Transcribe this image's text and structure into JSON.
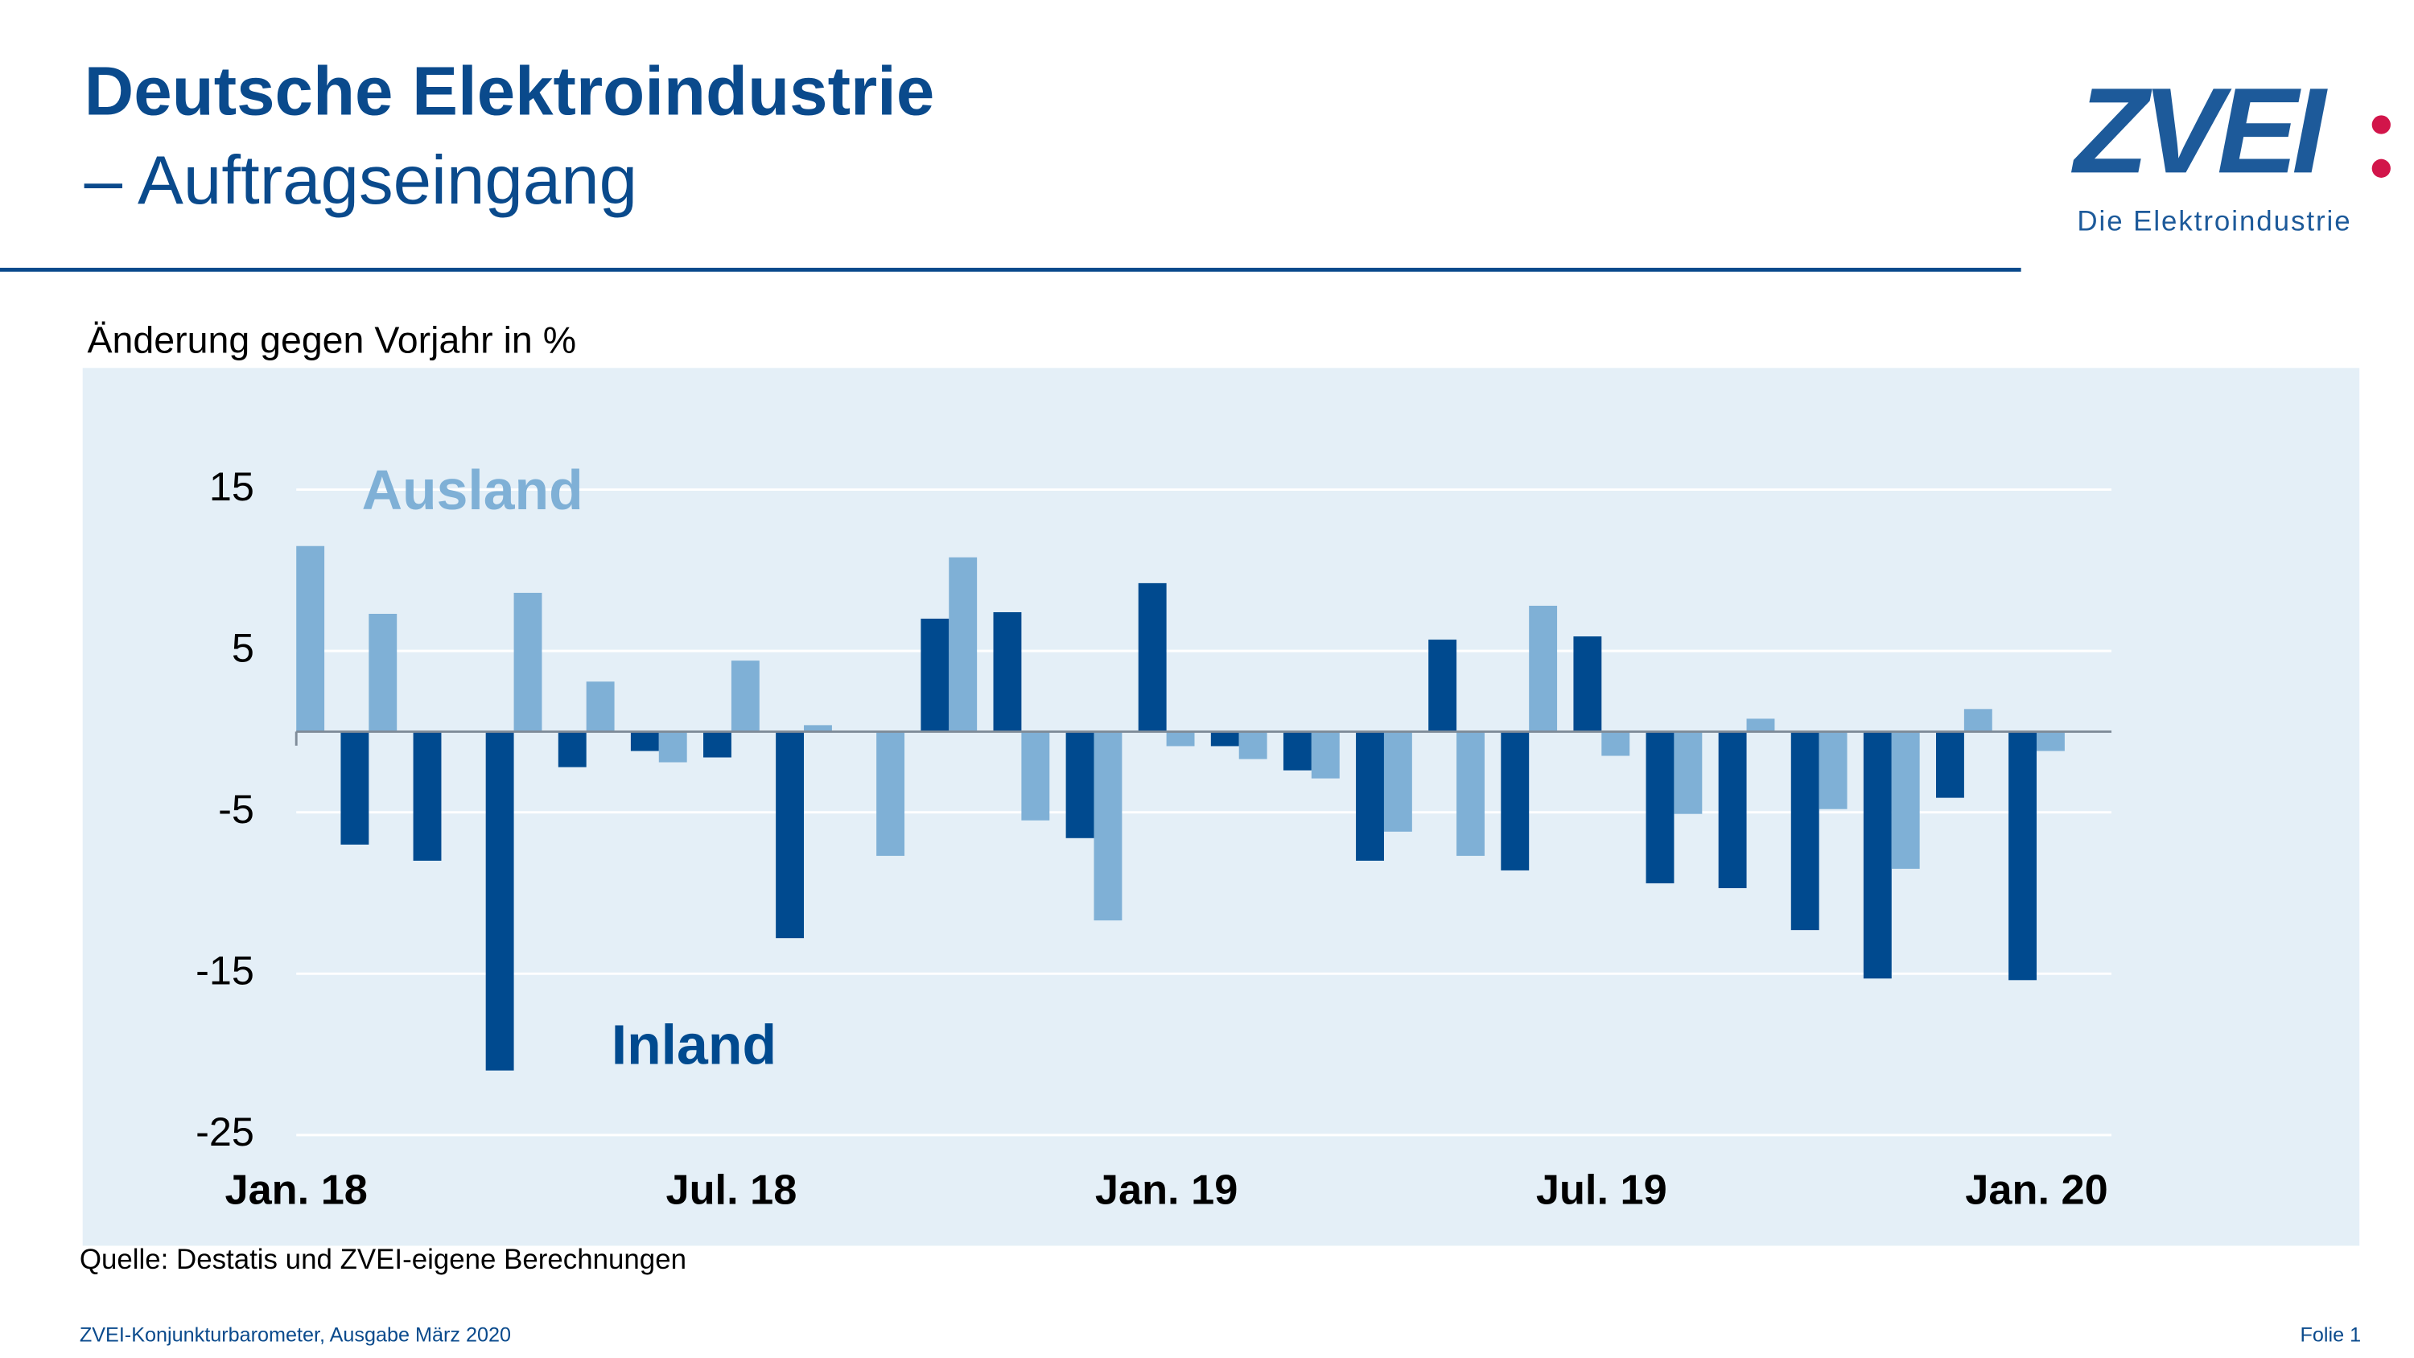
{
  "header": {
    "title": "Deutsche Elektroindustrie",
    "subtitle": "– Auftragseingang"
  },
  "logo": {
    "name": "ZVEI",
    "tagline": "Die Elektroindustrie"
  },
  "chart_data": {
    "type": "bar",
    "y_label": "Änderung gegen Vorjahr in %",
    "categories": [
      "Jan. 18",
      null,
      null,
      null,
      null,
      null,
      "Jul. 18",
      null,
      null,
      null,
      null,
      null,
      "Jan. 19",
      null,
      null,
      null,
      null,
      null,
      "Jul. 19",
      null,
      null,
      null,
      null,
      null,
      "Jan. 20"
    ],
    "series": [
      {
        "name": "Inland",
        "color": "#004a8f",
        "values": [
          null,
          -7,
          -8,
          -21,
          -2.2,
          -1.2,
          -1.6,
          -12.8,
          null,
          7,
          7.4,
          -6.6,
          9.2,
          -0.9,
          -2.4,
          -8,
          5.7,
          -8.6,
          5.9,
          -9.4,
          -9.7,
          -12.3,
          -15.3,
          -4.1,
          -15.4
        ]
      },
      {
        "name": "Ausland",
        "color": "#7fb0d6",
        "values": [
          11.5,
          7.3,
          null,
          8.6,
          3.1,
          -1.9,
          4.4,
          0.4,
          -7.7,
          10.8,
          -5.5,
          -11.7,
          -0.9,
          -1.7,
          -2.9,
          -6.2,
          -7.7,
          7.8,
          -1.5,
          -5.1,
          0.8,
          -4.8,
          -8.5,
          1.4,
          -1.2
        ]
      }
    ],
    "ylim": [
      -25,
      15
    ],
    "yticks": [
      15,
      5,
      -5,
      -15,
      -25
    ],
    "grid": true,
    "source": "Quelle: Destatis und ZVEI-eigene Berechnungen"
  },
  "footer": {
    "left": "ZVEI-Konjunkturbarometer, Ausgabe März 2020",
    "right": "Folie 1"
  }
}
